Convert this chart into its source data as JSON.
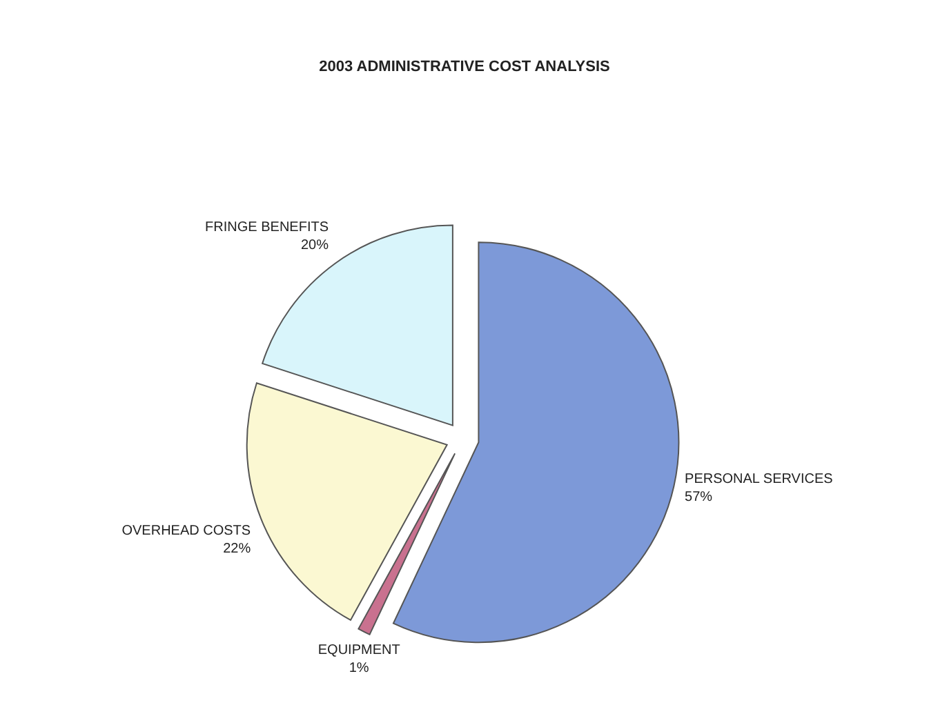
{
  "chart_data": {
    "type": "pie",
    "title": "2003 ADMINISTRATIVE COST ANALYSIS",
    "categories": [
      "PERSONAL SERVICES",
      "EQUIPMENT",
      "OVERHEAD COSTS",
      "FRINGE BENEFITS"
    ],
    "values": [
      57,
      1,
      22,
      20
    ],
    "value_labels": [
      "57%",
      "1%",
      "22%",
      "20%"
    ],
    "colors": [
      "#7d99d8",
      "#c9718f",
      "#fbf8d2",
      "#d9f5fb"
    ]
  }
}
